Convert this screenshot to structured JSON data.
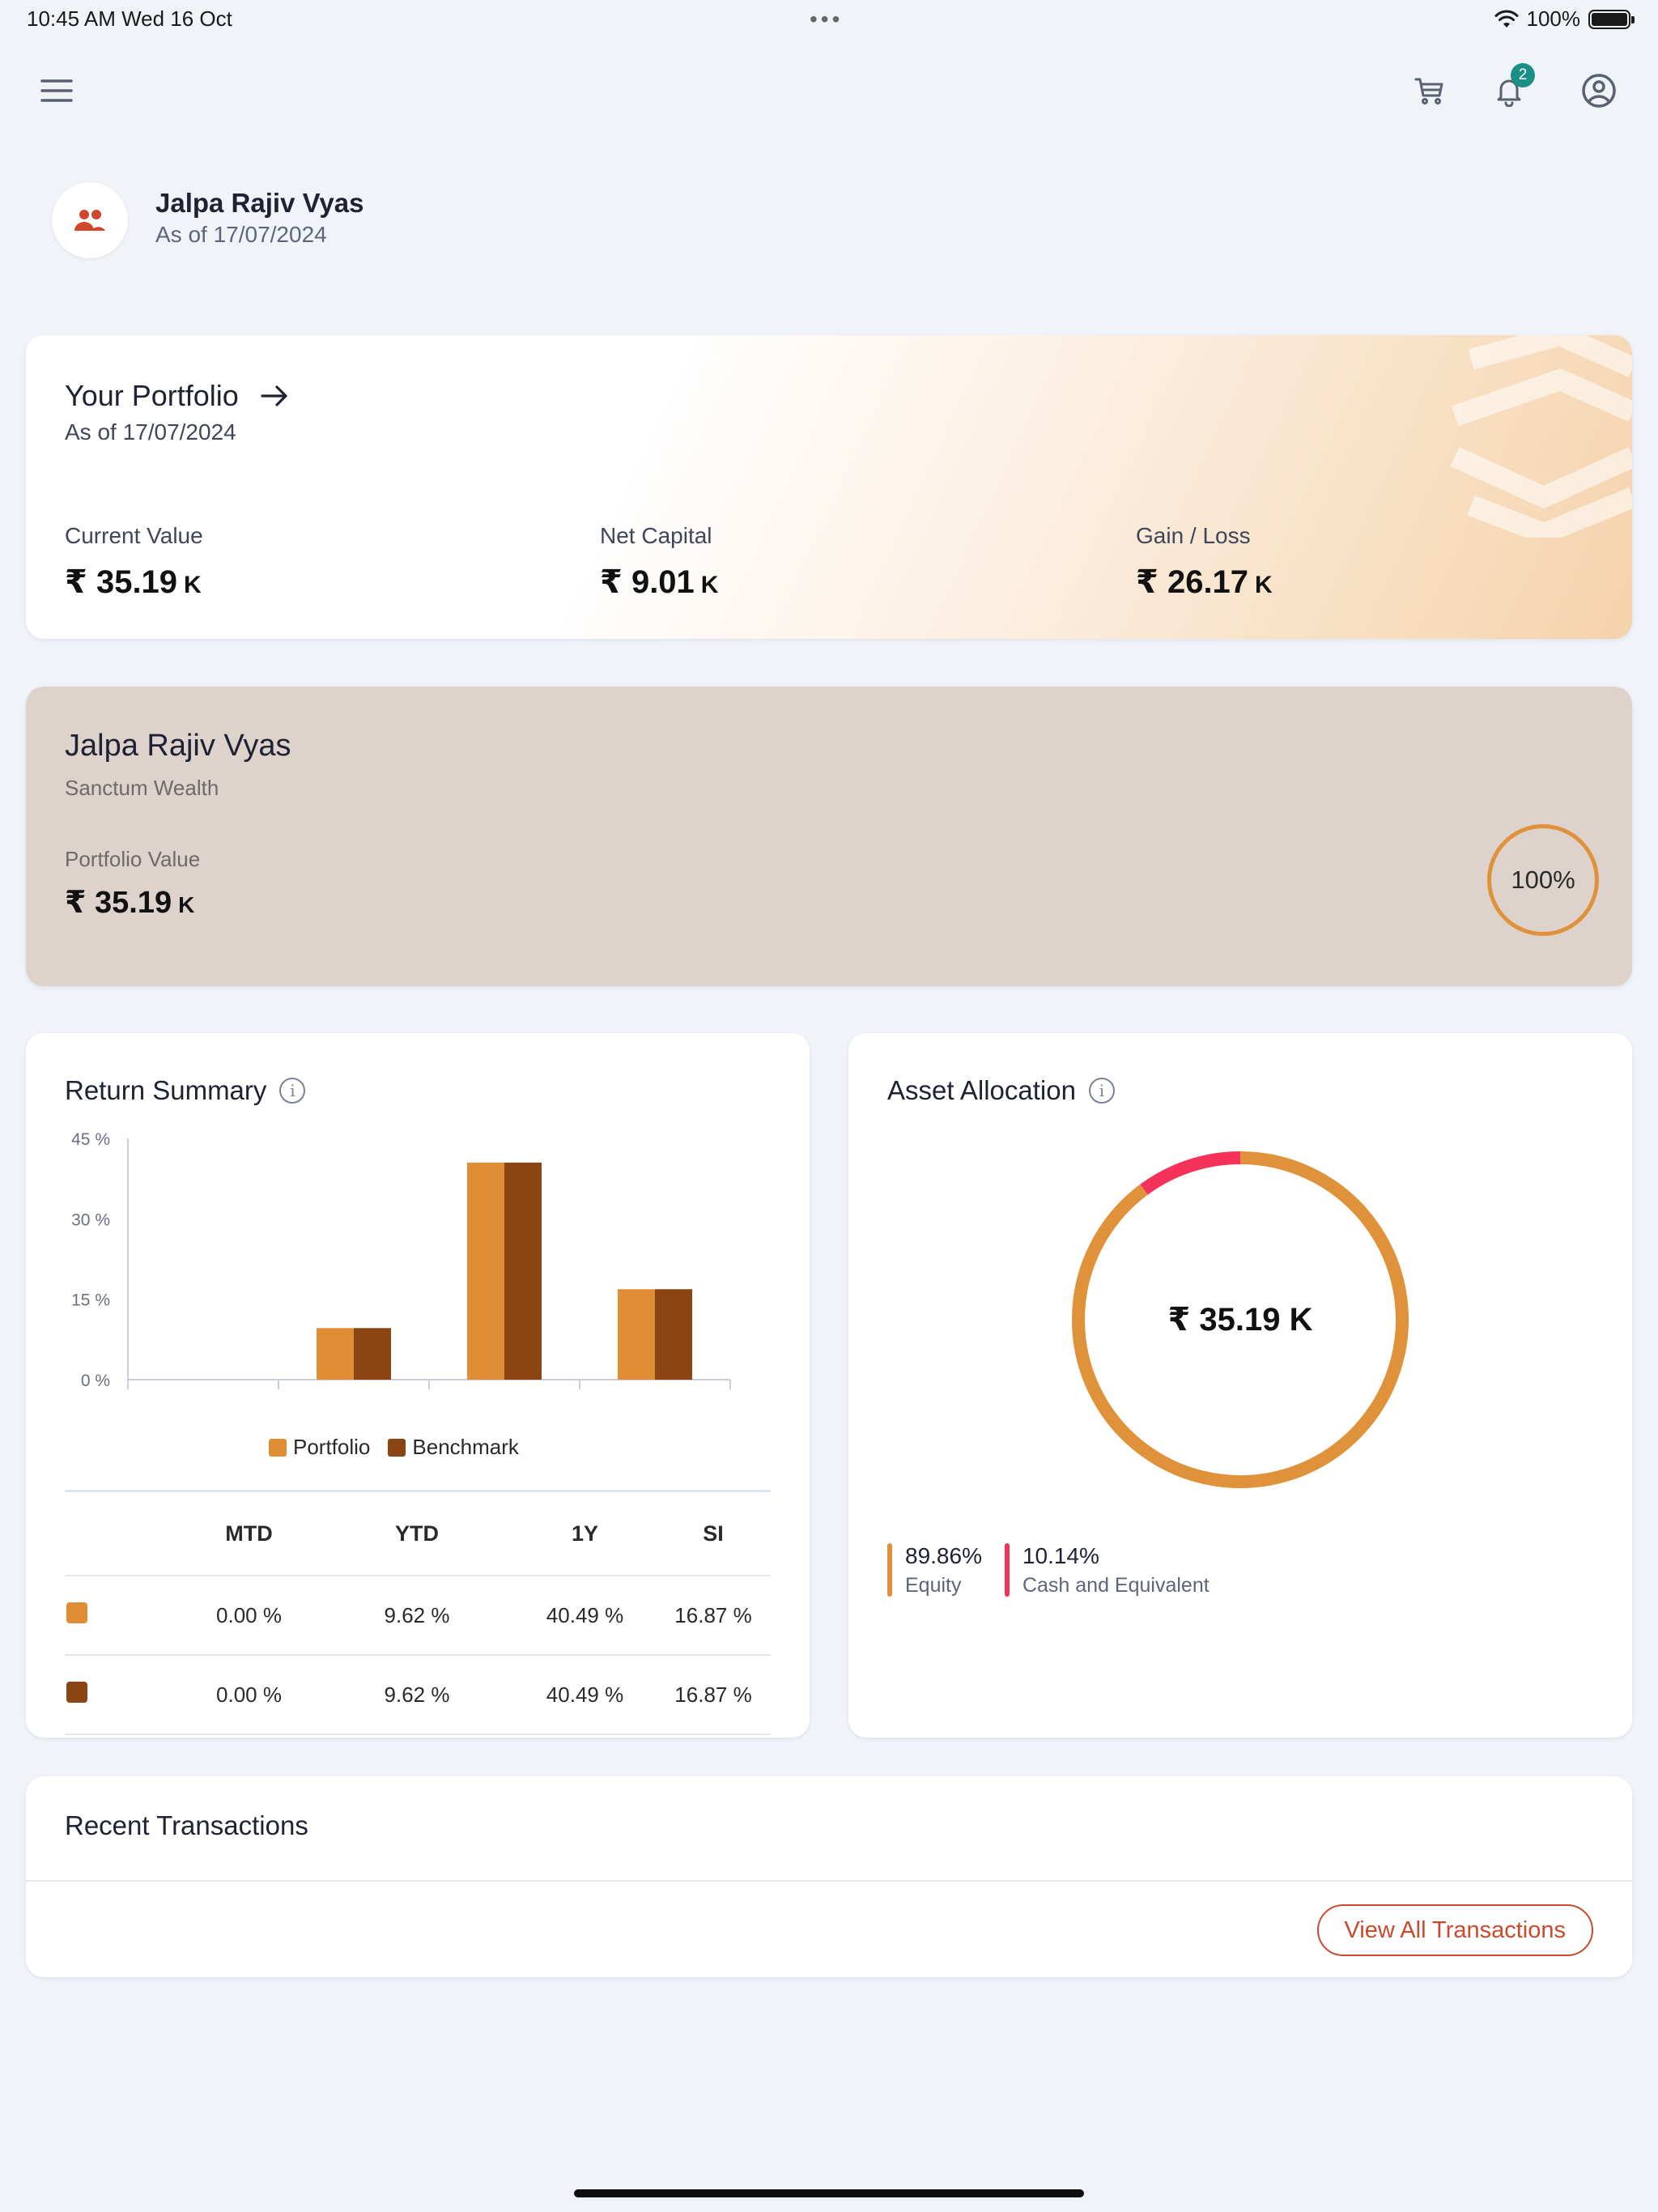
{
  "status_bar": {
    "time_date": "10:45 AM   Wed 16 Oct",
    "dots": "•••",
    "battery": "100%"
  },
  "nav": {
    "menu_icon": "hamburger-menu-icon",
    "cart_icon": "cart-icon",
    "bell_icon": "bell-icon",
    "notification_count": "2",
    "account_icon": "account-circle-icon"
  },
  "profile": {
    "name": "Jalpa Rajiv Vyas",
    "as_of": "As of 17/07/2024",
    "icon": "group-icon"
  },
  "portfolio": {
    "title": "Your Portfolio",
    "as_of": "As of 17/07/2024",
    "metrics": [
      {
        "label": "Current Value",
        "value": "₹ 35.19",
        "unit": "K"
      },
      {
        "label": "Net Capital",
        "value": "₹ 9.01",
        "unit": "K"
      },
      {
        "label": "Gain / Loss",
        "value": "₹ 26.17",
        "unit": "K"
      }
    ]
  },
  "client": {
    "name": "Jalpa Rajiv Vyas",
    "firm": "Sanctum Wealth",
    "value_label": "Portfolio Value",
    "value": "₹ 35.19",
    "unit": "K",
    "share": "100%"
  },
  "return_summary": {
    "title": "Return Summary",
    "legend": [
      "Portfolio",
      "Benchmark"
    ],
    "table_headers": [
      "MTD",
      "YTD",
      "1Y",
      "SI"
    ],
    "rows": [
      {
        "series": "Portfolio",
        "values": [
          "0.00 %",
          "9.62 %",
          "40.49 %",
          "16.87 %"
        ]
      },
      {
        "series": "Benchmark",
        "values": [
          "0.00 %",
          "9.62 %",
          "40.49 %",
          "16.87 %"
        ]
      }
    ]
  },
  "asset_allocation": {
    "title": "Asset Allocation",
    "total": "₹ 35.19 K",
    "items": [
      {
        "pct": "89.86%",
        "name": "Equity",
        "color": "#e0923a"
      },
      {
        "pct": "10.14%",
        "name": "Cash and Equivalent",
        "color": "#f5335a"
      }
    ]
  },
  "recent_transactions": {
    "title": "Recent Transactions",
    "button": "View All Transactions"
  },
  "colors": {
    "portfolio": "#e08e35",
    "benchmark": "#8b4513",
    "equity": "#e0923a",
    "cash": "#f5335a",
    "accent": "#c94a2c"
  },
  "chart_data": [
    {
      "type": "bar",
      "title": "Return Summary",
      "categories": [
        "MTD",
        "YTD",
        "1Y",
        "SI"
      ],
      "series": [
        {
          "name": "Portfolio",
          "values": [
            0.0,
            9.62,
            40.49,
            16.87
          ]
        },
        {
          "name": "Benchmark",
          "values": [
            0.0,
            9.62,
            40.49,
            16.87
          ]
        }
      ],
      "y_ticks": [
        "0 %",
        "15 %",
        "30 %",
        "45 %"
      ],
      "ylim": [
        0,
        45
      ],
      "legend": "bottom"
    },
    {
      "type": "pie",
      "title": "Asset Allocation",
      "labels": [
        "Equity",
        "Cash and Equivalent"
      ],
      "values": [
        89.86,
        10.14
      ],
      "center_label": "₹ 35.19 K"
    }
  ]
}
